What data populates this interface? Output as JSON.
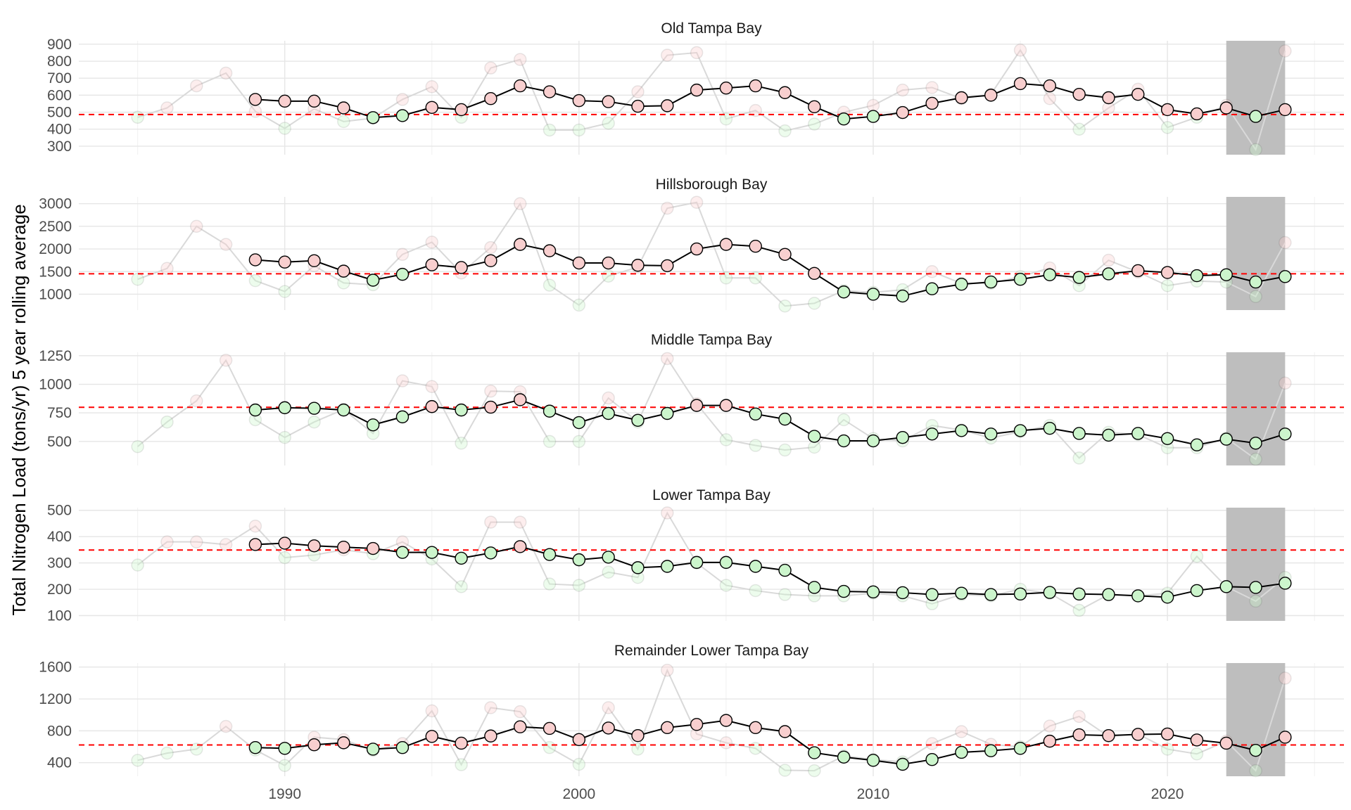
{
  "chart_data": {
    "type": "line",
    "ylabel": "Total Nitrogen Load (tons/yr) 5 year rolling average",
    "x_ticks": [
      1990,
      2000,
      2010,
      2020
    ],
    "xlim": [
      1983,
      2026
    ],
    "shaded_range": [
      2022,
      2024
    ],
    "grid": true,
    "colors": {
      "above_target": "#F8CFCF",
      "below_target": "#CCF5CC",
      "target_line": "#FF0000",
      "shade": "#BEBEBE",
      "rolling_line": "#000000",
      "annual_line": "#D9D9D9"
    },
    "panels": [
      {
        "title": "Old Tampa Bay",
        "ylim": [
          250,
          920
        ],
        "yticks": [
          300,
          400,
          500,
          600,
          700,
          800,
          900
        ],
        "target": 486,
        "rolling_years": [
          1989,
          1990,
          1991,
          1992,
          1993,
          1994,
          1995,
          1996,
          1997,
          1998,
          1999,
          2000,
          2001,
          2002,
          2003,
          2004,
          2005,
          2006,
          2007,
          2008,
          2009,
          2010,
          2011,
          2012,
          2013,
          2014,
          2015,
          2016,
          2017,
          2018,
          2019,
          2020,
          2021,
          2022,
          2023,
          2024
        ],
        "rolling_values": [
          575,
          565,
          565,
          525,
          468,
          480,
          528,
          515,
          580,
          655,
          620,
          568,
          562,
          535,
          538,
          630,
          642,
          655,
          615,
          532,
          460,
          475,
          498,
          552,
          585,
          600,
          668,
          655,
          605,
          585,
          605,
          515,
          490,
          525,
          475,
          515
        ],
        "annual_years": [
          1985,
          1986,
          1987,
          1988,
          1989,
          1990,
          1991,
          1992,
          1993,
          1994,
          1995,
          1996,
          1997,
          1998,
          1999,
          2000,
          2001,
          2002,
          2003,
          2004,
          2005,
          2006,
          2007,
          2008,
          2009,
          2010,
          2011,
          2012,
          2013,
          2014,
          2015,
          2016,
          2017,
          2018,
          2019,
          2020,
          2021,
          2022,
          2023,
          2024
        ],
        "annual_values": [
          470,
          525,
          655,
          730,
          505,
          405,
          520,
          445,
          465,
          575,
          650,
          470,
          760,
          810,
          395,
          395,
          435,
          620,
          835,
          850,
          460,
          510,
          390,
          430,
          500,
          540,
          630,
          645,
          580,
          605,
          865,
          580,
          400,
          525,
          635,
          410,
          470,
          540,
          280,
          860
        ]
      },
      {
        "title": "Hillsborough Bay",
        "ylim": [
          650,
          3150
        ],
        "yticks": [
          1000,
          1500,
          2000,
          2500,
          3000
        ],
        "target": 1451,
        "rolling_years": [
          1989,
          1990,
          1991,
          1992,
          1993,
          1994,
          1995,
          1996,
          1997,
          1998,
          1999,
          2000,
          2001,
          2002,
          2003,
          2004,
          2005,
          2006,
          2007,
          2008,
          2009,
          2010,
          2011,
          2012,
          2013,
          2014,
          2015,
          2016,
          2017,
          2018,
          2019,
          2020,
          2021,
          2022,
          2023,
          2024
        ],
        "rolling_values": [
          1760,
          1710,
          1740,
          1510,
          1310,
          1440,
          1650,
          1590,
          1740,
          2100,
          1960,
          1690,
          1690,
          1640,
          1630,
          2000,
          2100,
          2060,
          1880,
          1460,
          1050,
          1000,
          960,
          1120,
          1220,
          1270,
          1330,
          1430,
          1370,
          1450,
          1520,
          1480,
          1410,
          1430,
          1270,
          1390
        ],
        "annual_years": [
          1985,
          1986,
          1987,
          1988,
          1989,
          1990,
          1991,
          1992,
          1993,
          1994,
          1995,
          1996,
          1997,
          1998,
          1999,
          2000,
          2001,
          2002,
          2003,
          2004,
          2005,
          2006,
          2007,
          2008,
          2009,
          2010,
          2011,
          2012,
          2013,
          2014,
          2015,
          2016,
          2017,
          2018,
          2019,
          2020,
          2021,
          2022,
          2023,
          2024
        ],
        "annual_values": [
          1330,
          1570,
          2500,
          2100,
          1300,
          1060,
          1630,
          1250,
          1210,
          1880,
          2150,
          1470,
          2030,
          3000,
          1200,
          760,
          1400,
          1600,
          2900,
          3030,
          1360,
          1360,
          740,
          800,
          1080,
          1040,
          1100,
          1500,
          1240,
          1240,
          1390,
          1580,
          1190,
          1750,
          1490,
          1190,
          1290,
          1270,
          950,
          2140
        ]
      },
      {
        "title": "Middle Tampa Bay",
        "ylim": [
          290,
          1280
        ],
        "yticks": [
          500,
          750,
          1000,
          1250
        ],
        "target": 799,
        "rolling_years": [
          1989,
          1990,
          1991,
          1992,
          1993,
          1994,
          1995,
          1996,
          1997,
          1998,
          1999,
          2000,
          2001,
          2002,
          2003,
          2004,
          2005,
          2006,
          2007,
          2008,
          2009,
          2010,
          2011,
          2012,
          2013,
          2014,
          2015,
          2016,
          2017,
          2018,
          2019,
          2020,
          2021,
          2022,
          2023,
          2024
        ],
        "rolling_values": [
          775,
          795,
          790,
          775,
          645,
          715,
          805,
          775,
          800,
          865,
          765,
          665,
          745,
          685,
          745,
          815,
          815,
          740,
          695,
          545,
          505,
          505,
          535,
          565,
          595,
          565,
          595,
          615,
          570,
          555,
          570,
          525,
          470,
          520,
          485,
          565
        ],
        "annual_years": [
          1985,
          1986,
          1987,
          1988,
          1989,
          1990,
          1991,
          1992,
          1993,
          1994,
          1995,
          1996,
          1997,
          1998,
          1999,
          2000,
          2001,
          2002,
          2003,
          2004,
          2005,
          2006,
          2007,
          2008,
          2009,
          2010,
          2011,
          2012,
          2013,
          2014,
          2015,
          2016,
          2017,
          2018,
          2019,
          2020,
          2021,
          2022,
          2023,
          2024
        ],
        "annual_values": [
          455,
          670,
          855,
          1210,
          690,
          535,
          670,
          780,
          570,
          1030,
          980,
          485,
          940,
          935,
          500,
          500,
          880,
          670,
          1225,
          830,
          515,
          465,
          425,
          450,
          690,
          525,
          505,
          640,
          600,
          530,
          585,
          640,
          355,
          580,
          560,
          445,
          445,
          530,
          345,
          1010
        ]
      },
      {
        "title": "Lower Tampa Bay",
        "ylim": [
          80,
          510
        ],
        "yticks": [
          100,
          200,
          300,
          400,
          500
        ],
        "target": 349,
        "rolling_years": [
          1989,
          1990,
          1991,
          1992,
          1993,
          1994,
          1995,
          1996,
          1997,
          1998,
          1999,
          2000,
          2001,
          2002,
          2003,
          2004,
          2005,
          2006,
          2007,
          2008,
          2009,
          2010,
          2011,
          2012,
          2013,
          2014,
          2015,
          2016,
          2017,
          2018,
          2019,
          2020,
          2021,
          2022,
          2023,
          2024
        ],
        "rolling_values": [
          370,
          375,
          365,
          360,
          355,
          340,
          340,
          318,
          338,
          362,
          332,
          312,
          322,
          282,
          287,
          302,
          302,
          287,
          272,
          207,
          192,
          190,
          187,
          180,
          185,
          180,
          182,
          188,
          182,
          180,
          175,
          170,
          195,
          210,
          207,
          223
        ],
        "annual_years": [
          1985,
          1986,
          1987,
          1988,
          1989,
          1990,
          1991,
          1992,
          1993,
          1994,
          1995,
          1996,
          1997,
          1998,
          1999,
          2000,
          2001,
          2002,
          2003,
          2004,
          2005,
          2006,
          2007,
          2008,
          2009,
          2010,
          2011,
          2012,
          2013,
          2014,
          2015,
          2016,
          2017,
          2018,
          2019,
          2020,
          2021,
          2022,
          2023,
          2024
        ],
        "annual_values": [
          292,
          380,
          380,
          370,
          440,
          320,
          330,
          350,
          335,
          380,
          315,
          210,
          455,
          455,
          220,
          215,
          265,
          245,
          490,
          300,
          215,
          195,
          180,
          175,
          175,
          185,
          175,
          145,
          180,
          175,
          200,
          185,
          120,
          180,
          175,
          185,
          325,
          210,
          155,
          245
        ]
      },
      {
        "title": "Remainder Lower Tampa Bay",
        "ylim": [
          230,
          1650
        ],
        "yticks": [
          400,
          800,
          1200,
          1600
        ],
        "target": 623,
        "rolling_years": [
          1989,
          1990,
          1991,
          1992,
          1993,
          1994,
          1995,
          1996,
          1997,
          1998,
          1999,
          2000,
          2001,
          2002,
          2003,
          2004,
          2005,
          2006,
          2007,
          2008,
          2009,
          2010,
          2011,
          2012,
          2013,
          2014,
          2015,
          2016,
          2017,
          2018,
          2019,
          2020,
          2021,
          2022,
          2023,
          2024
        ],
        "rolling_values": [
          590,
          580,
          625,
          650,
          570,
          590,
          730,
          645,
          735,
          850,
          830,
          690,
          835,
          740,
          840,
          880,
          930,
          840,
          790,
          525,
          470,
          430,
          380,
          440,
          530,
          550,
          580,
          670,
          750,
          740,
          755,
          760,
          685,
          645,
          555,
          720
        ],
        "annual_years": [
          1985,
          1986,
          1987,
          1988,
          1989,
          1990,
          1991,
          1992,
          1993,
          1994,
          1995,
          1996,
          1997,
          1998,
          1999,
          2000,
          2001,
          2002,
          2003,
          2004,
          2005,
          2006,
          2007,
          2008,
          2009,
          2010,
          2011,
          2012,
          2013,
          2014,
          2015,
          2016,
          2017,
          2018,
          2019,
          2020,
          2021,
          2022,
          2023,
          2024
        ],
        "annual_values": [
          430,
          520,
          570,
          855,
          560,
          365,
          720,
          690,
          555,
          640,
          1050,
          375,
          1090,
          1040,
          590,
          380,
          1090,
          570,
          1560,
          760,
          650,
          580,
          305,
          300,
          485,
          440,
          410,
          640,
          790,
          630,
          600,
          860,
          980,
          730,
          760,
          570,
          510,
          670,
          300,
          1460
        ]
      }
    ]
  }
}
